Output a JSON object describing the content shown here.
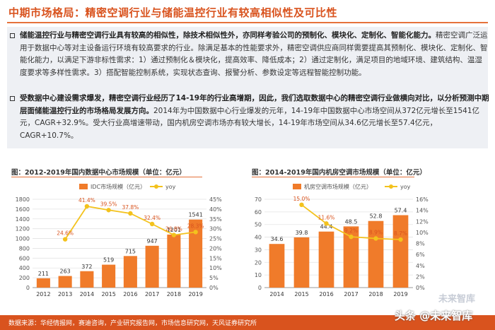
{
  "title": "中期市场格局：精密空调行业与储能温控行业有较高相似性及可比性",
  "para1_bold": "储能温控行业与精密空调行业具有较高的相似性，除技术相似性外，亦同样考验公司的预制化、模块化、定制化、智能化能力。",
  "para1_text": "精密空调广泛运用于数据中心等对主设备运行环境有较高要求的行业。除满足基本的性能要求外，精密空调供应商同样需要提高其预制化、模块化、定制化、智能化能力，以满足下游非标性需求：1）通过预制化＆模块化，提高效率、降低成本；2）通过定制化，满足项目的地域环境、建筑结构、温湿度要求等多样性需求。3）搭配智能控制系统，实现状态查询、报警分析、参数设定等远程智能控制功能。",
  "para2_bold": "受数据中心建设需求爆发，精密空调行业经历了14-19年的行业高增期，因此，我们选取数据中心的精密空调行业做横向对比，以分析预测中期层面储能温控行业的市场格局发展方向。",
  "para2_text": "2014年为中国数据中心行业爆发的元年，14-19年中国数据中心市场空间从372亿元增长至1541亿元，CAGR+32.9%。受大行业高增速带动，国内机房空调市场亦有较大增长，14-19年市场空间从34.6亿元增长至57.4亿元，CAGR+10.7%。",
  "caption1": "图：2012-2019年国内数据中心市场规模（单位：亿元）",
  "caption2": "图：2014-2019年国内机房空调市场规模（单位：亿元）",
  "footer": "数据来源：华经情报网，赛迪咨询，产业研究报告网，市场信息研究网，天风证券研究所",
  "watermark": "头条 @未来智库",
  "watermark_small": "未来智库",
  "colors": {
    "accent": "#d9531e",
    "bar": "#f07b2a",
    "line": "#f3c21d"
  },
  "chart_data": [
    {
      "type": "bar",
      "categories": [
        "2012",
        "2013",
        "2014",
        "2015",
        "2016",
        "2017",
        "2018",
        "2019"
      ],
      "series": [
        {
          "name": "IDC市场规模（亿元）",
          "kind": "bar",
          "axis": "left",
          "values": [
            211,
            263,
            372,
            519,
            715,
            947,
            1201,
            1541
          ],
          "labels": [
            "211",
            "263",
            "372",
            "519",
            "715",
            "947",
            "1201",
            "1541"
          ]
        },
        {
          "name": "yoy",
          "kind": "line",
          "axis": "right",
          "values": [
            null,
            24.6,
            41.4,
            39.5,
            37.8,
            32.4,
            26.8,
            28.3
          ],
          "labels": [
            "",
            "24.6%",
            "41.4%",
            "39.5%",
            "37.8%",
            "32.4%",
            "26.8%",
            "28.3%"
          ]
        }
      ],
      "ylim": [
        0,
        2000
      ],
      "yticks": [
        "0",
        "200",
        "400",
        "600",
        "800",
        "1000",
        "1200",
        "1400",
        "1600",
        "1800"
      ],
      "y2lim": [
        0,
        45
      ],
      "y2ticks": [
        "0%",
        "5%",
        "10%",
        "15%",
        "20%",
        "25%",
        "30%",
        "35%",
        "40%",
        "45%"
      ],
      "legend": "top"
    },
    {
      "type": "bar",
      "categories": [
        "2014",
        "2015",
        "2016",
        "2017",
        "2018",
        "2019"
      ],
      "series": [
        {
          "name": "机房空调市场规模（亿元）",
          "kind": "bar",
          "axis": "left",
          "values": [
            34.6,
            39.8,
            44.4,
            48.5,
            52.8,
            57.4
          ],
          "labels": [
            "34.6",
            "39.8",
            "44.4",
            "48.5",
            "52.8",
            "57.4"
          ]
        },
        {
          "name": "yoy",
          "kind": "line",
          "axis": "right",
          "values": [
            null,
            15.0,
            11.6,
            9.2,
            8.9,
            8.7
          ],
          "labels": [
            "",
            "15.0%",
            "11.6%",
            "9.2%",
            "8.9%",
            "8.7%"
          ]
        }
      ],
      "ylim": [
        0,
        70
      ],
      "yticks": [
        "0",
        "10",
        "20",
        "30",
        "40",
        "50",
        "60",
        "70"
      ],
      "y2lim": [
        0,
        16
      ],
      "y2ticks": [
        "0%",
        "2%",
        "4%",
        "6%",
        "8%",
        "10%",
        "12%",
        "14%",
        "16%"
      ],
      "legend": "top"
    }
  ]
}
